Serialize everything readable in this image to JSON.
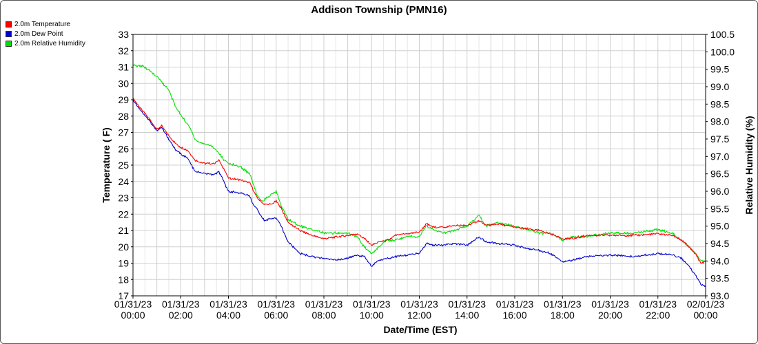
{
  "chart_data": {
    "type": "line",
    "title": "Addison Township (PMN16)",
    "xlabel": "Date/Time (EST)",
    "ylabel": "Temperature ( F)",
    "y2label": "Relative Humidity (%)",
    "ylim": [
      17,
      33
    ],
    "y2lim": [
      93.0,
      100.5
    ],
    "grid": true,
    "legend_position": "top-left",
    "x_ticks": [
      {
        "h": 0,
        "date": "01/31/23",
        "time": "00:00"
      },
      {
        "h": 2,
        "date": "01/31/23",
        "time": "02:00"
      },
      {
        "h": 4,
        "date": "01/31/23",
        "time": "04:00"
      },
      {
        "h": 6,
        "date": "01/31/23",
        "time": "06:00"
      },
      {
        "h": 8,
        "date": "01/31/23",
        "time": "08:00"
      },
      {
        "h": 10,
        "date": "01/31/23",
        "time": "10:00"
      },
      {
        "h": 12,
        "date": "01/31/23",
        "time": "12:00"
      },
      {
        "h": 14,
        "date": "01/31/23",
        "time": "14:00"
      },
      {
        "h": 16,
        "date": "01/31/23",
        "time": "16:00"
      },
      {
        "h": 18,
        "date": "01/31/23",
        "time": "18:00"
      },
      {
        "h": 20,
        "date": "01/31/23",
        "time": "20:00"
      },
      {
        "h": 22,
        "date": "01/31/23",
        "time": "22:00"
      },
      {
        "h": 24,
        "date": "02/01/23",
        "time": "00:00"
      }
    ],
    "y_ticks": [
      17,
      18,
      19,
      20,
      21,
      22,
      23,
      24,
      25,
      26,
      27,
      28,
      29,
      30,
      31,
      32,
      33
    ],
    "y2_ticks": [
      "93.0",
      "93.5",
      "94.0",
      "94.5",
      "95.0",
      "95.5",
      "96.0",
      "96.5",
      "97.0",
      "97.5",
      "98.0",
      "98.5",
      "99.0",
      "99.5",
      "100.0",
      "100.5"
    ],
    "series": [
      {
        "name": "2.0m Temperature",
        "color": "#ff0000",
        "axis": "left",
        "points": [
          [
            0,
            29.1
          ],
          [
            0.3,
            28.5
          ],
          [
            0.7,
            27.8
          ],
          [
            1.0,
            27.2
          ],
          [
            1.2,
            27.4
          ],
          [
            1.5,
            26.8
          ],
          [
            1.8,
            26.3
          ],
          [
            2.0,
            26.1
          ],
          [
            2.3,
            25.9
          ],
          [
            2.6,
            25.3
          ],
          [
            3.0,
            25.1
          ],
          [
            3.4,
            25.1
          ],
          [
            3.6,
            25.3
          ],
          [
            3.8,
            24.8
          ],
          [
            4.0,
            24.2
          ],
          [
            4.5,
            24.1
          ],
          [
            4.9,
            23.9
          ],
          [
            5.0,
            23.6
          ],
          [
            5.2,
            23.0
          ],
          [
            5.5,
            22.6
          ],
          [
            5.8,
            22.6
          ],
          [
            6.0,
            22.8
          ],
          [
            6.2,
            22.4
          ],
          [
            6.5,
            21.5
          ],
          [
            7.0,
            21.0
          ],
          [
            7.5,
            20.7
          ],
          [
            8.0,
            20.5
          ],
          [
            8.5,
            20.6
          ],
          [
            9.0,
            20.7
          ],
          [
            9.4,
            20.8
          ],
          [
            9.7,
            20.5
          ],
          [
            10.0,
            20.1
          ],
          [
            10.3,
            20.3
          ],
          [
            10.7,
            20.4
          ],
          [
            11.0,
            20.7
          ],
          [
            11.5,
            20.8
          ],
          [
            12.0,
            20.9
          ],
          [
            12.3,
            21.4
          ],
          [
            12.6,
            21.2
          ],
          [
            13.0,
            21.2
          ],
          [
            13.5,
            21.3
          ],
          [
            14.0,
            21.3
          ],
          [
            14.5,
            21.6
          ],
          [
            14.8,
            21.3
          ],
          [
            15.3,
            21.4
          ],
          [
            16.0,
            21.2
          ],
          [
            16.5,
            21.1
          ],
          [
            17.0,
            21.0
          ],
          [
            17.5,
            20.8
          ],
          [
            18.0,
            20.5
          ],
          [
            18.5,
            20.5
          ],
          [
            19.0,
            20.7
          ],
          [
            20.0,
            20.7
          ],
          [
            21.0,
            20.7
          ],
          [
            22.0,
            20.8
          ],
          [
            22.6,
            20.7
          ],
          [
            23.0,
            20.4
          ],
          [
            23.3,
            20.0
          ],
          [
            23.6,
            19.5
          ],
          [
            23.8,
            19.0
          ],
          [
            24.0,
            19.1
          ]
        ]
      },
      {
        "name": "2.0m Dew Point",
        "color": "#0000cc",
        "axis": "left",
        "points": [
          [
            0,
            29.0
          ],
          [
            0.3,
            28.4
          ],
          [
            0.7,
            27.7
          ],
          [
            1.0,
            27.1
          ],
          [
            1.2,
            27.3
          ],
          [
            1.5,
            26.6
          ],
          [
            1.8,
            25.9
          ],
          [
            2.0,
            25.7
          ],
          [
            2.3,
            25.4
          ],
          [
            2.6,
            24.6
          ],
          [
            3.0,
            24.5
          ],
          [
            3.4,
            24.4
          ],
          [
            3.6,
            24.6
          ],
          [
            3.8,
            24.0
          ],
          [
            4.0,
            23.4
          ],
          [
            4.5,
            23.3
          ],
          [
            4.9,
            23.1
          ],
          [
            5.0,
            22.7
          ],
          [
            5.2,
            22.3
          ],
          [
            5.5,
            21.6
          ],
          [
            5.8,
            21.7
          ],
          [
            6.0,
            21.8
          ],
          [
            6.2,
            21.3
          ],
          [
            6.5,
            20.3
          ],
          [
            7.0,
            19.6
          ],
          [
            7.5,
            19.4
          ],
          [
            8.0,
            19.3
          ],
          [
            8.5,
            19.2
          ],
          [
            9.0,
            19.3
          ],
          [
            9.4,
            19.5
          ],
          [
            9.7,
            19.4
          ],
          [
            10.0,
            18.8
          ],
          [
            10.3,
            19.2
          ],
          [
            10.7,
            19.3
          ],
          [
            11.0,
            19.4
          ],
          [
            11.5,
            19.5
          ],
          [
            12.0,
            19.6
          ],
          [
            12.3,
            20.2
          ],
          [
            12.6,
            20.1
          ],
          [
            13.0,
            20.1
          ],
          [
            13.5,
            20.2
          ],
          [
            14.0,
            20.1
          ],
          [
            14.5,
            20.6
          ],
          [
            14.8,
            20.3
          ],
          [
            15.3,
            20.2
          ],
          [
            16.0,
            20.1
          ],
          [
            16.5,
            19.9
          ],
          [
            17.0,
            19.8
          ],
          [
            17.5,
            19.6
          ],
          [
            18.0,
            19.1
          ],
          [
            18.5,
            19.2
          ],
          [
            19.0,
            19.4
          ],
          [
            20.0,
            19.5
          ],
          [
            21.0,
            19.4
          ],
          [
            22.0,
            19.6
          ],
          [
            22.6,
            19.5
          ],
          [
            23.0,
            19.3
          ],
          [
            23.3,
            18.8
          ],
          [
            23.6,
            18.2
          ],
          [
            23.8,
            17.7
          ],
          [
            24.0,
            17.6
          ]
        ]
      },
      {
        "name": "2.0m Relative Humidity",
        "color": "#00e000",
        "axis": "right",
        "points": [
          [
            0,
            99.6
          ],
          [
            0.4,
            99.6
          ],
          [
            1.0,
            99.3
          ],
          [
            1.5,
            98.9
          ],
          [
            1.8,
            98.4
          ],
          [
            2.0,
            98.2
          ],
          [
            2.4,
            97.8
          ],
          [
            2.6,
            97.5
          ],
          [
            2.8,
            97.4
          ],
          [
            3.3,
            97.3
          ],
          [
            3.6,
            97.1
          ],
          [
            3.8,
            96.9
          ],
          [
            4.0,
            96.8
          ],
          [
            4.5,
            96.7
          ],
          [
            4.9,
            96.5
          ],
          [
            5.0,
            96.3
          ],
          [
            5.2,
            95.9
          ],
          [
            5.4,
            95.7
          ],
          [
            5.8,
            95.9
          ],
          [
            6.0,
            96.0
          ],
          [
            6.2,
            95.6
          ],
          [
            6.5,
            95.2
          ],
          [
            7.0,
            95.0
          ],
          [
            7.5,
            94.9
          ],
          [
            8.0,
            94.8
          ],
          [
            8.5,
            94.8
          ],
          [
            9.0,
            94.8
          ],
          [
            9.4,
            94.7
          ],
          [
            9.7,
            94.4
          ],
          [
            10.0,
            94.2
          ],
          [
            10.3,
            94.4
          ],
          [
            10.6,
            94.6
          ],
          [
            11.0,
            94.6
          ],
          [
            11.5,
            94.7
          ],
          [
            12.0,
            94.7
          ],
          [
            12.3,
            95.0
          ],
          [
            12.6,
            94.9
          ],
          [
            13.0,
            94.8
          ],
          [
            13.5,
            94.9
          ],
          [
            14.0,
            95.0
          ],
          [
            14.5,
            95.3
          ],
          [
            14.8,
            95.0
          ],
          [
            15.3,
            95.1
          ],
          [
            16.0,
            95.0
          ],
          [
            16.5,
            94.9
          ],
          [
            17.0,
            94.8
          ],
          [
            17.5,
            94.8
          ],
          [
            18.0,
            94.6
          ],
          [
            18.5,
            94.7
          ],
          [
            19.0,
            94.7
          ],
          [
            20.0,
            94.8
          ],
          [
            21.0,
            94.8
          ],
          [
            22.0,
            94.9
          ],
          [
            22.6,
            94.8
          ],
          [
            23.0,
            94.6
          ],
          [
            23.3,
            94.4
          ],
          [
            23.6,
            94.2
          ],
          [
            23.8,
            94.0
          ],
          [
            24.0,
            94.0
          ]
        ]
      }
    ]
  }
}
